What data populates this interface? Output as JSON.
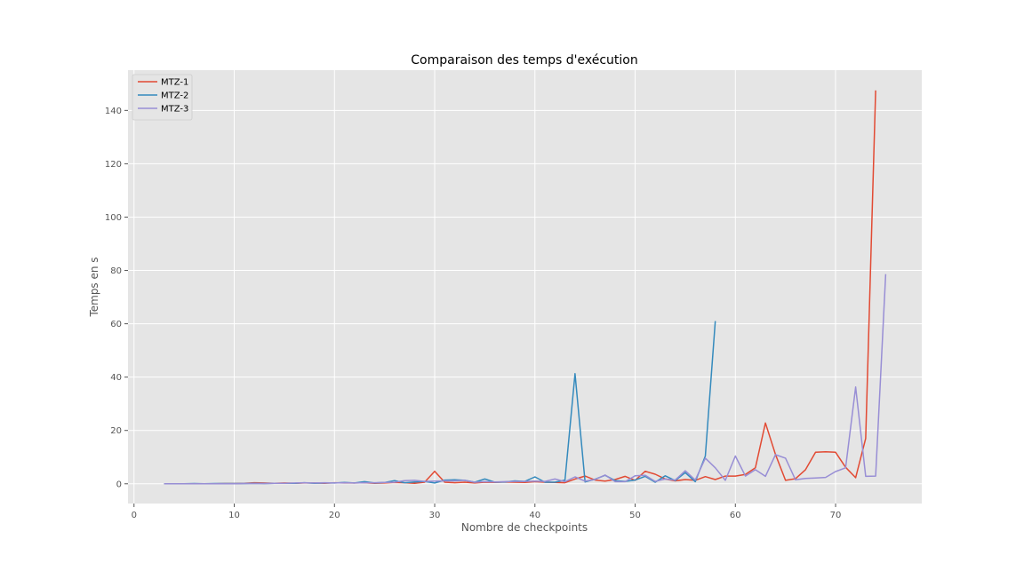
{
  "chart_data": {
    "type": "line",
    "title": "Comparaison des temps d'exécution",
    "xlabel": "Nombre de checkpoints",
    "ylabel": "Temps en s",
    "xlim": [
      -0.6,
      78.6
    ],
    "ylim": [
      -7.4,
      155.1
    ],
    "xticks": [
      0,
      10,
      20,
      30,
      40,
      50,
      60,
      70
    ],
    "yticks": [
      0,
      20,
      40,
      60,
      80,
      100,
      120,
      140
    ],
    "grid": true,
    "legend_position": "top-left",
    "series": [
      {
        "name": "MTZ-1",
        "color": "#e24a33",
        "x": [
          3,
          4,
          5,
          6,
          7,
          8,
          9,
          10,
          11,
          12,
          13,
          14,
          15,
          16,
          17,
          18,
          19,
          20,
          21,
          22,
          23,
          24,
          25,
          26,
          27,
          28,
          29,
          30,
          31,
          32,
          33,
          34,
          35,
          36,
          37,
          38,
          39,
          40,
          41,
          42,
          43,
          44,
          45,
          46,
          47,
          48,
          49,
          50,
          51,
          52,
          53,
          54,
          55,
          56,
          57,
          58,
          59,
          60,
          61,
          62,
          63,
          64,
          65,
          66,
          67,
          68,
          69,
          70,
          71,
          72,
          73,
          74
        ],
        "y": [
          0,
          0,
          0,
          0,
          0,
          0,
          0.1,
          0.1,
          0.2,
          0.4,
          0.3,
          0.2,
          0.3,
          0.2,
          0.3,
          0.3,
          0.2,
          0.4,
          0.3,
          0.3,
          0.4,
          0.2,
          0.3,
          0.5,
          0.4,
          0.2,
          0.6,
          4.7,
          0.6,
          0.4,
          0.6,
          0.3,
          0.6,
          0.5,
          0.7,
          0.6,
          0.5,
          0.8,
          0.6,
          0.5,
          0.4,
          1.8,
          2.9,
          1.4,
          1.0,
          1.6,
          2.8,
          1.3,
          4.7,
          3.6,
          1.8,
          1.1,
          1.6,
          1.3,
          2.7,
          1.6,
          2.9,
          2.9,
          3.5,
          6.0,
          22.8,
          11.0,
          1.3,
          1.9,
          5.3,
          11.8,
          12.0,
          11.8,
          6.2,
          2.3,
          17.0,
          147.5
        ]
      },
      {
        "name": "MTZ-2",
        "color": "#348abd",
        "x": [
          3,
          4,
          5,
          6,
          7,
          8,
          9,
          10,
          11,
          12,
          13,
          14,
          15,
          16,
          17,
          18,
          19,
          20,
          21,
          22,
          23,
          24,
          25,
          26,
          27,
          28,
          29,
          30,
          31,
          32,
          33,
          34,
          35,
          36,
          37,
          38,
          39,
          40,
          41,
          42,
          43,
          44,
          45,
          46,
          47,
          48,
          49,
          50,
          51,
          52,
          53,
          54,
          55,
          56,
          57,
          58
        ],
        "y": [
          0,
          0,
          0,
          0.1,
          0,
          0.1,
          0.1,
          0.1,
          0.1,
          0.2,
          0.1,
          0.2,
          0.2,
          0.2,
          0.4,
          0.2,
          0.3,
          0.3,
          0.5,
          0.3,
          0.8,
          0.3,
          0.5,
          1.2,
          0.4,
          0.7,
          0.9,
          0.3,
          1.4,
          1.5,
          1.3,
          0.6,
          1.8,
          0.6,
          0.7,
          1.1,
          0.9,
          2.6,
          0.6,
          0.6,
          1.4,
          41.3,
          0.7,
          1.7,
          3.2,
          1.2,
          0.9,
          1.4,
          2.8,
          0.6,
          3.0,
          1.2,
          4.2,
          0.8,
          10.4,
          61.0
        ]
      },
      {
        "name": "MTZ-3",
        "color": "#988ed5",
        "x": [
          3,
          4,
          5,
          6,
          7,
          8,
          9,
          10,
          11,
          12,
          13,
          14,
          15,
          16,
          17,
          18,
          19,
          20,
          21,
          22,
          23,
          24,
          25,
          26,
          27,
          28,
          29,
          30,
          31,
          32,
          33,
          34,
          35,
          36,
          37,
          38,
          39,
          40,
          41,
          42,
          43,
          44,
          45,
          46,
          47,
          48,
          49,
          50,
          51,
          52,
          53,
          54,
          55,
          56,
          57,
          58,
          59,
          60,
          61,
          62,
          63,
          64,
          65,
          66,
          67,
          68,
          69,
          70,
          71,
          72,
          73,
          74,
          75
        ],
        "y": [
          0,
          0,
          0,
          0,
          0,
          0,
          0,
          0,
          0.1,
          0.1,
          0.1,
          0.2,
          0.2,
          0.3,
          0.4,
          0.3,
          0.4,
          0.3,
          0.4,
          0.3,
          0.4,
          0.4,
          0.5,
          0.6,
          1.2,
          1.3,
          0.9,
          1.0,
          1.1,
          1.1,
          1.3,
          0.6,
          0.8,
          0.7,
          0.8,
          0.9,
          0.9,
          1.0,
          0.9,
          1.8,
          0.8,
          2.6,
          1.0,
          1.6,
          3.3,
          0.8,
          0.8,
          3.0,
          3.2,
          0.9,
          1.8,
          1.4,
          4.9,
          1.4,
          9.6,
          6.0,
          1.3,
          10.4,
          2.9,
          5.3,
          2.8,
          10.9,
          9.6,
          1.5,
          2.0,
          2.2,
          2.4,
          4.6,
          6.0,
          36.3,
          2.8,
          2.9,
          78.6
        ]
      }
    ]
  }
}
